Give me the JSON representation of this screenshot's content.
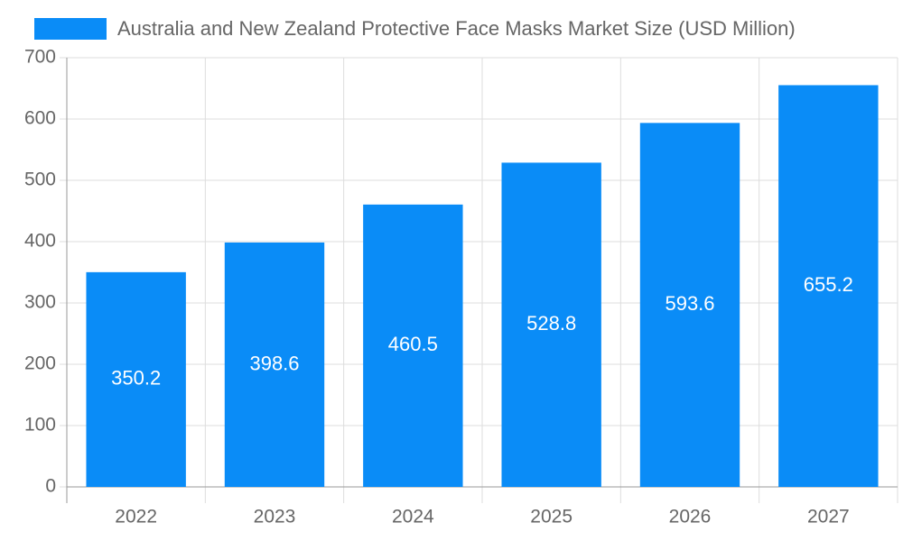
{
  "chart_data": {
    "type": "bar",
    "legend": "Australia and New Zealand Protective Face Masks Market Size (USD Million)",
    "legend_position": "top",
    "categories": [
      "2022",
      "2023",
      "2024",
      "2025",
      "2026",
      "2027"
    ],
    "series": [
      {
        "name": "Australia and New Zealand Protective Face Masks Market Size (USD Million)",
        "color": "#0a8cf7",
        "values": [
          350.2,
          398.6,
          460.5,
          528.8,
          593.6,
          655.2
        ]
      }
    ],
    "ylim": [
      0,
      700
    ],
    "yticks": [
      0,
      100,
      200,
      300,
      400,
      500,
      600,
      700
    ],
    "grid": true,
    "data_labels": true
  }
}
